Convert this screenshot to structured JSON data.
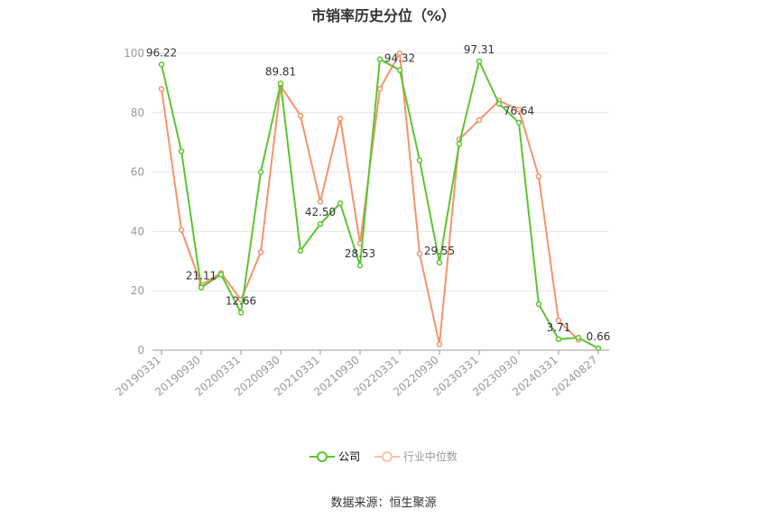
{
  "chart_data": {
    "type": "line",
    "title": "市销率历史分位（%）",
    "xlabel": "",
    "ylabel": "",
    "ylim": [
      0,
      100
    ],
    "yticks": [
      0,
      20,
      40,
      60,
      80,
      100
    ],
    "grid": true,
    "legend_position": "bottom",
    "x": [
      "20190331",
      "20190630",
      "20190930",
      "20191231",
      "20200331",
      "20200630",
      "20200930",
      "20201231",
      "20210331",
      "20210630",
      "20210930",
      "20211231",
      "20220331",
      "20220630",
      "20220930",
      "20221231",
      "20230331",
      "20230630",
      "20230930",
      "20231231",
      "20240331",
      "20240630",
      "20240827"
    ],
    "xtick_labels": [
      "20190331",
      "20190930",
      "20200331",
      "20200930",
      "20210331",
      "20210930",
      "20220331",
      "20220930",
      "20230331",
      "20230930",
      "20240331",
      "20240827"
    ],
    "series": [
      {
        "name": "公司",
        "color": "#5cc531",
        "values": [
          96.22,
          67.0,
          21.11,
          25.5,
          12.66,
          60.0,
          89.81,
          33.5,
          42.5,
          49.5,
          28.53,
          98.0,
          94.32,
          64.0,
          29.55,
          69.5,
          97.31,
          83.0,
          76.64,
          15.5,
          3.71,
          4.2,
          0.66
        ],
        "labels": [
          "96.22",
          "",
          "21.11",
          "",
          "12.66",
          "",
          "89.81",
          "",
          "42.50",
          "",
          "28.53",
          "",
          "94.32",
          "",
          "29.55",
          "",
          "97.31",
          "",
          "76.64",
          "",
          "3.71",
          "",
          "0.66"
        ]
      },
      {
        "name": "行业中位数",
        "color": "#f5936b",
        "values": [
          88.0,
          40.5,
          22.0,
          26.0,
          17.0,
          33.0,
          89.0,
          79.0,
          50.0,
          78.0,
          36.0,
          88.0,
          100.0,
          32.5,
          2.0,
          71.0,
          77.5,
          84.0,
          81.0,
          58.5,
          10.0,
          3.5,
          null
        ]
      }
    ]
  },
  "source": "数据来源：恒生聚源"
}
